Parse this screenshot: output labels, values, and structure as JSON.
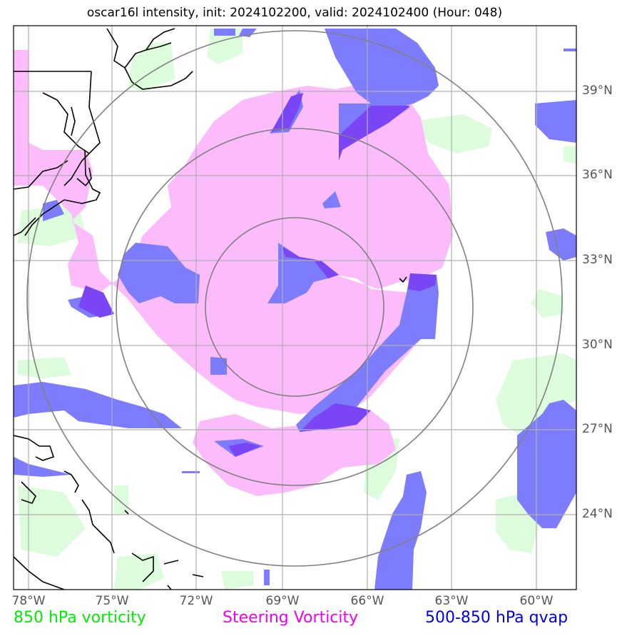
{
  "title": "oscar16l intensity, init: 2024102200, valid: 2024102400 (Hour: 048)",
  "axes": {
    "lat_labels": [
      "39°N",
      "36°N",
      "33°N",
      "30°N",
      "27°N",
      "24°N"
    ],
    "lon_labels": [
      "78°W",
      "75°W",
      "72°W",
      "69°W",
      "66°W",
      "63°W",
      "60°W"
    ]
  },
  "legend": {
    "vorticity_850": {
      "label": "850 hPa vorticity",
      "color": "#00ee00"
    },
    "steering_vorticity": {
      "label": "Steering Vorticity",
      "color": "#ee00ee"
    },
    "qvap": {
      "label": "500-850 hPa qvap",
      "color": "#0000dd"
    }
  },
  "fill_colors": {
    "vorticity": "#dcfcdc",
    "steering": "#fcbcfc",
    "qvap": "#7c7cfc",
    "overlap": "#7a46f5"
  },
  "range_rings": {
    "count": 3,
    "center_lon": -68.5,
    "center_lat": 31.5
  }
}
